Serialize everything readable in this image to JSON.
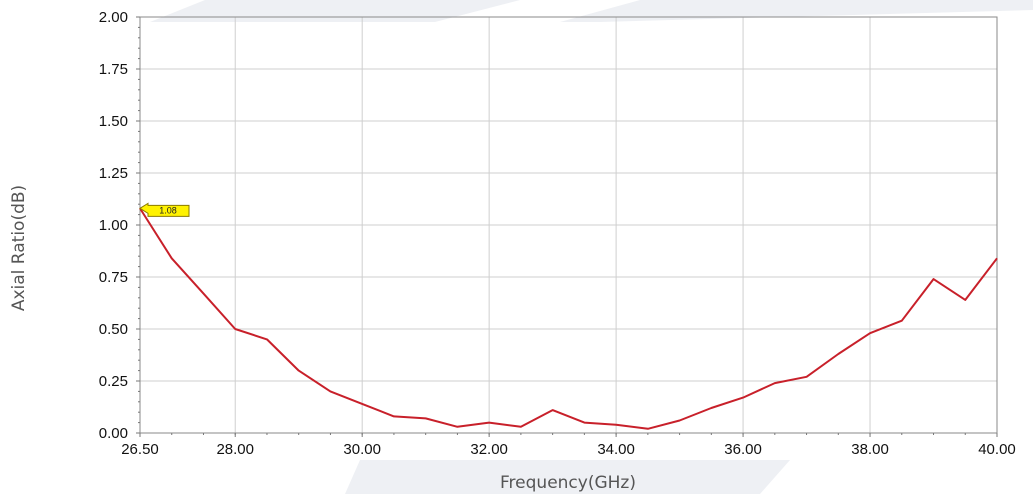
{
  "chart_data": {
    "type": "line",
    "title": "",
    "xlabel": "Frequency(GHz)",
    "ylabel": "Axial Ratio(dB)",
    "xlim": [
      26.5,
      40
    ],
    "ylim": [
      0,
      2
    ],
    "x_ticks": [
      "26.50",
      "28.00",
      "30.00",
      "32.00",
      "34.00",
      "36.00",
      "38.00",
      "40.00"
    ],
    "x_tick_values": [
      26.5,
      28,
      30,
      32,
      34,
      36,
      38,
      40
    ],
    "y_ticks": [
      "0.00",
      "0.25",
      "0.50",
      "0.75",
      "1.00",
      "1.25",
      "1.50",
      "1.75",
      "2.00"
    ],
    "y_tick_values": [
      0,
      0.25,
      0.5,
      0.75,
      1.0,
      1.25,
      1.5,
      1.75,
      2.0
    ],
    "grid": true,
    "series": [
      {
        "color": "#c8202a",
        "x": [
          26.5,
          27.0,
          27.5,
          28.0,
          28.5,
          29.0,
          29.5,
          30.0,
          30.5,
          31.0,
          31.5,
          32.0,
          32.5,
          33.0,
          33.5,
          34.0,
          34.5,
          35.0,
          35.5,
          36.0,
          36.5,
          37.0,
          37.5,
          38.0,
          38.5,
          39.0,
          39.5,
          40.0
        ],
        "y": [
          1.08,
          0.84,
          0.67,
          0.5,
          0.45,
          0.3,
          0.2,
          0.14,
          0.08,
          0.07,
          0.03,
          0.05,
          0.03,
          0.11,
          0.05,
          0.04,
          0.02,
          0.06,
          0.12,
          0.17,
          0.24,
          0.27,
          0.38,
          0.48,
          0.54,
          0.74,
          0.64,
          0.84
        ]
      }
    ],
    "annotations": [
      {
        "label": "1.08",
        "x": 26.5,
        "y": 1.08,
        "color": "#fff200"
      }
    ]
  }
}
